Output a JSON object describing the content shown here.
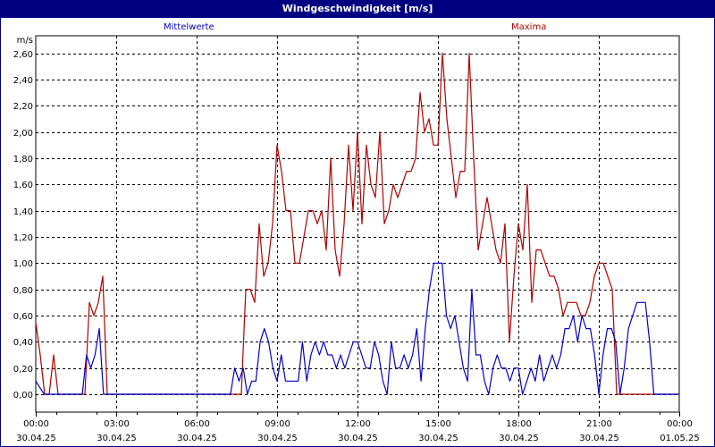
{
  "window": {
    "title": "Windgeschwindigkeit [m/s]"
  },
  "legend": {
    "mean_label": "Mittelwerte",
    "max_label": "Maxima"
  },
  "colors": {
    "titlebar": "#000080",
    "mean": "#0000cc",
    "max": "#b00000",
    "grid": "#000000"
  },
  "chart_data": {
    "type": "line",
    "title": "Windgeschwindigkeit [m/s]",
    "xlabel": "",
    "ylabel": "m/s",
    "ylim": [
      -0.13,
      2.7
    ],
    "yticks": [
      "0,00",
      "0,20",
      "0,40",
      "0,60",
      "0,80",
      "1,00",
      "1,20",
      "1,40",
      "1,60",
      "1,80",
      "2,00",
      "2,20",
      "2,40",
      "2,60"
    ],
    "xticks": [
      {
        "time": "00:00",
        "date": "30.04.25"
      },
      {
        "time": "03:00",
        "date": "30.04.25"
      },
      {
        "time": "06:00",
        "date": "30.04.25"
      },
      {
        "time": "09:00",
        "date": "30.04.25"
      },
      {
        "time": "12:00",
        "date": "30.04.25"
      },
      {
        "time": "15:00",
        "date": "30.04.25"
      },
      {
        "time": "18:00",
        "date": "30.04.25"
      },
      {
        "time": "21:00",
        "date": "30.04.25"
      },
      {
        "time": "00:00",
        "date": "01.05.25"
      }
    ],
    "grid": true,
    "legend_position": "top",
    "x_interval_minutes": 10,
    "series": [
      {
        "name": "Mittelwerte",
        "color": "#0000cc",
        "values": [
          0.1,
          0.05,
          0,
          0,
          0,
          0,
          0,
          0,
          0,
          0,
          0,
          0,
          0.3,
          0.2,
          0.3,
          0.5,
          0,
          0,
          0,
          0,
          0,
          0,
          0,
          0,
          0,
          0,
          0,
          0,
          0,
          0,
          0,
          0,
          0,
          0,
          0,
          0,
          0,
          0,
          0,
          0,
          0,
          0,
          0,
          0,
          0,
          0,
          0,
          0.2,
          0.1,
          0.2,
          0.0,
          0.1,
          0.1,
          0.4,
          0.5,
          0.4,
          0.2,
          0.1,
          0.3,
          0.1,
          0.1,
          0.1,
          0.1,
          0.4,
          0.1,
          0.3,
          0.4,
          0.3,
          0.4,
          0.3,
          0.3,
          0.2,
          0.3,
          0.2,
          0.3,
          0.4,
          0.4,
          0.3,
          0.2,
          0.2,
          0.4,
          0.3,
          0.1,
          0.0,
          0.4,
          0.2,
          0.2,
          0.3,
          0.2,
          0.3,
          0.5,
          0.1,
          0.5,
          0.8,
          1.0,
          1.0,
          1.0,
          0.6,
          0.5,
          0.6,
          0.4,
          0.2,
          0.1,
          0.8,
          0.3,
          0.3,
          0.1,
          0.0,
          0.2,
          0.3,
          0.2,
          0.2,
          0.1,
          0.2,
          0.2,
          0.0,
          0.1,
          0.2,
          0.1,
          0.3,
          0.1,
          0.2,
          0.3,
          0.2,
          0.3,
          0.5,
          0.5,
          0.6,
          0.4,
          0.6,
          0.5,
          0.5,
          0.3,
          0.0,
          0.3,
          0.5,
          0.5,
          0.4,
          0.0,
          0.2,
          0.5,
          0.6,
          0.7,
          0.7,
          0.7,
          0.4,
          0.0,
          0.0,
          0,
          0,
          0,
          0,
          0
        ]
      },
      {
        "name": "Maxima",
        "color": "#b00000",
        "values": [
          0.55,
          0.3,
          0,
          0,
          0.3,
          0,
          0,
          0,
          0,
          0,
          0,
          0,
          0.7,
          0.6,
          0.7,
          0.9,
          0,
          0,
          0,
          0,
          0,
          0,
          0,
          0,
          0,
          0,
          0,
          0,
          0,
          0,
          0,
          0,
          0,
          0,
          0,
          0,
          0,
          0,
          0,
          0,
          0,
          0,
          0,
          0,
          0,
          0,
          0,
          0.8,
          0.8,
          0.7,
          1.3,
          0.9,
          1.0,
          1.3,
          1.9,
          1.7,
          1.4,
          1.4,
          1.0,
          1.0,
          1.2,
          1.4,
          1.4,
          1.3,
          1.4,
          1.1,
          1.8,
          1.1,
          0.9,
          1.3,
          1.9,
          1.4,
          2.0,
          1.3,
          1.9,
          1.6,
          1.5,
          2.0,
          1.3,
          1.4,
          1.6,
          1.5,
          1.6,
          1.7,
          1.7,
          1.8,
          2.3,
          2.0,
          2.1,
          1.9,
          1.9,
          2.6,
          2.1,
          1.8,
          1.5,
          1.7,
          1.7,
          2.6,
          1.8,
          1.1,
          1.3,
          1.5,
          1.3,
          1.1,
          1.0,
          1.3,
          0.4,
          0.9,
          1.3,
          1.1,
          1.6,
          0.7,
          1.1,
          1.1,
          1.0,
          0.9,
          0.9,
          0.8,
          0.6,
          0.7,
          0.7,
          0.7,
          0.6,
          0.6,
          0.7,
          0.9,
          1.0,
          1.0,
          0.9,
          0.8,
          0.0,
          0,
          0,
          0,
          0,
          0,
          0,
          0,
          0,
          0,
          0,
          0,
          0,
          0,
          0
        ]
      }
    ]
  }
}
